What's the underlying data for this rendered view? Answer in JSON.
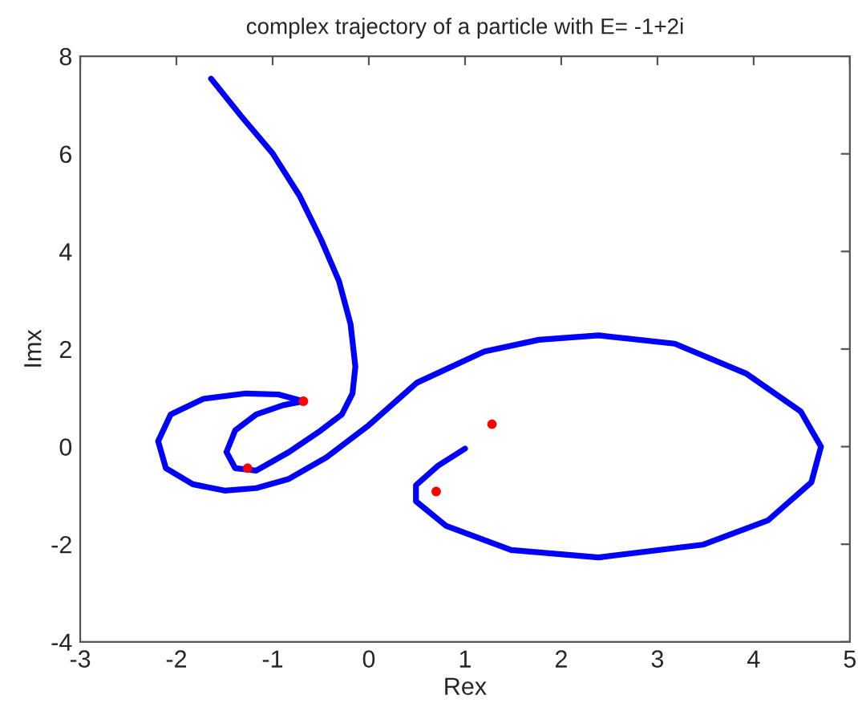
{
  "chart_data": {
    "type": "line",
    "title": "complex trajectory of a particle with E= -1+2i",
    "xlabel": "Rex",
    "ylabel": "Imx",
    "xlim": [
      -3,
      5
    ],
    "ylim": [
      -4,
      8
    ],
    "xticks": [
      -3,
      -2,
      -1,
      0,
      1,
      2,
      3,
      4,
      5
    ],
    "yticks": [
      -4,
      -2,
      0,
      2,
      4,
      6,
      8
    ],
    "grid": false,
    "legend": false,
    "line_style": "solid",
    "series": [
      {
        "marker": "none",
        "color": "#0000ff",
        "x": [
          -1.64,
          -1.33,
          -1.0,
          -0.72,
          -0.5,
          -0.31,
          -0.19,
          -0.14,
          -0.17,
          -0.28,
          -0.5,
          -0.83,
          -1.17,
          -1.39,
          -1.48,
          -1.39,
          -1.17,
          -0.89,
          -0.68,
          -0.94,
          -1.28,
          -1.72,
          -2.06,
          -2.19,
          -2.11,
          -1.83,
          -1.5,
          -1.17,
          -0.83,
          -0.44,
          0.0,
          0.5,
          1.2,
          1.77,
          2.39,
          3.18,
          3.92,
          4.49,
          4.7,
          4.6,
          4.15,
          3.47,
          2.39,
          1.48,
          0.8,
          0.49,
          0.49,
          0.72,
          1.0
        ],
        "values": [
          7.54,
          6.78,
          6.01,
          5.14,
          4.26,
          3.39,
          2.51,
          1.64,
          1.09,
          0.66,
          0.33,
          -0.11,
          -0.49,
          -0.44,
          -0.11,
          0.33,
          0.66,
          0.85,
          0.93,
          1.07,
          1.09,
          0.98,
          0.66,
          0.11,
          -0.44,
          -0.77,
          -0.9,
          -0.85,
          -0.66,
          -0.22,
          0.44,
          1.31,
          1.95,
          2.19,
          2.28,
          2.11,
          1.5,
          0.72,
          0.0,
          -0.73,
          -1.51,
          -2.01,
          -2.27,
          -2.12,
          -1.62,
          -1.12,
          -0.79,
          -0.39,
          -0.04
        ]
      },
      {
        "type": "scatter",
        "marker": "circle",
        "color": "#ff0000",
        "x": [
          -0.68,
          -1.26,
          1.28,
          0.7
        ],
        "values": [
          0.93,
          -0.44,
          0.46,
          -0.92
        ]
      }
    ]
  }
}
